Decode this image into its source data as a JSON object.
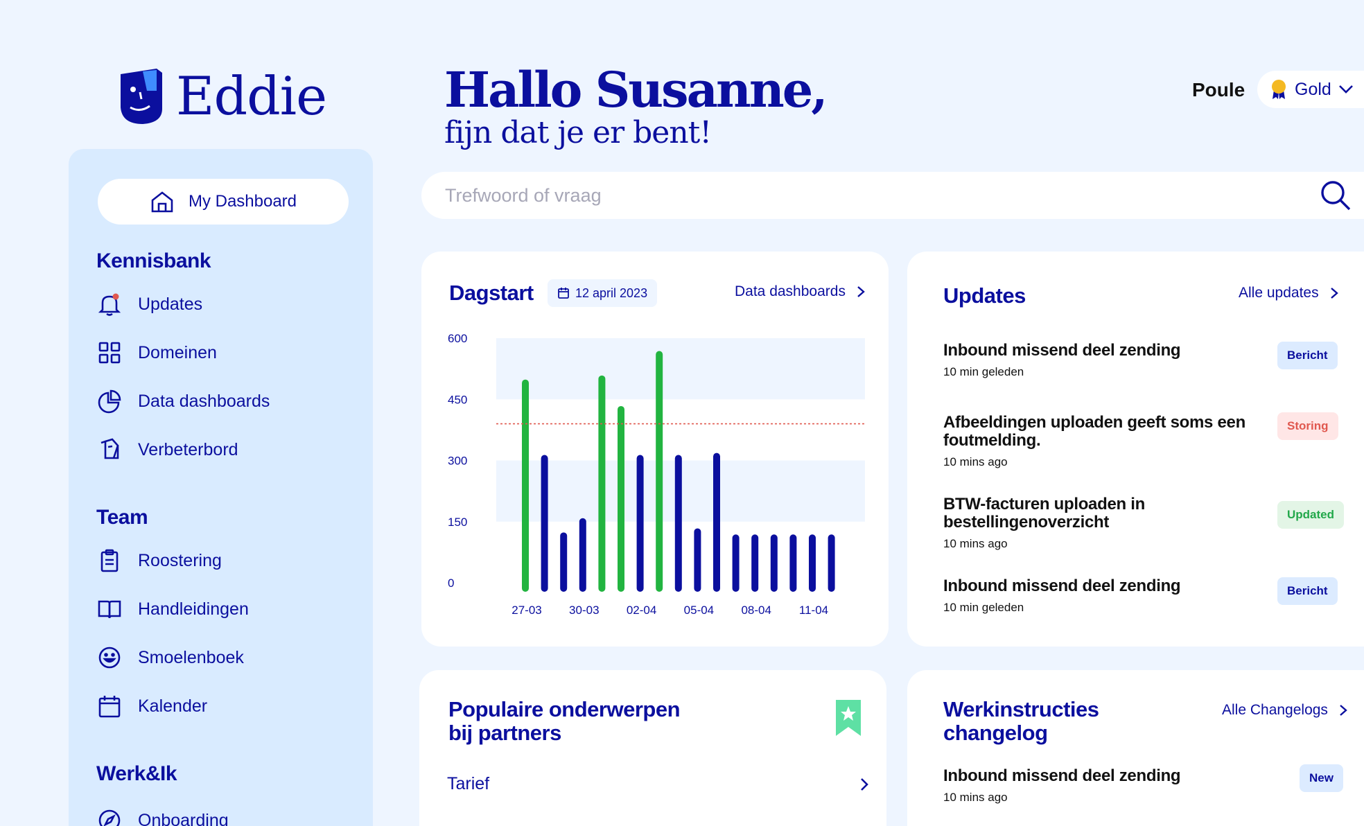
{
  "brand": {
    "name": "Eddie"
  },
  "sidebar": {
    "dashboard_label": "My Dashboard",
    "sections": [
      {
        "title": "Kennisbank",
        "items": [
          {
            "label": "Updates",
            "icon": "bell-icon"
          },
          {
            "label": "Domeinen",
            "icon": "grid-icon"
          },
          {
            "label": "Data dashboards",
            "icon": "pie-chart-icon"
          },
          {
            "label": "Verbeterbord",
            "icon": "clipboard-icon"
          }
        ]
      },
      {
        "title": "Team",
        "items": [
          {
            "label": "Roostering",
            "icon": "clipboard-list-icon"
          },
          {
            "label": "Handleidingen",
            "icon": "book-icon"
          },
          {
            "label": "Smoelenboek",
            "icon": "smiley-icon"
          },
          {
            "label": "Kalender",
            "icon": "calendar-icon"
          }
        ]
      },
      {
        "title": "Werk&Ik",
        "items": [
          {
            "label": "Onboarding",
            "icon": "compass-icon"
          }
        ]
      }
    ]
  },
  "header": {
    "greeting": "Hallo Susanne,",
    "subtitle": "fijn dat je er bent!",
    "poule_label": "Poule",
    "poule_value": "Gold"
  },
  "search": {
    "placeholder": "Trefwoord of vraag"
  },
  "dagstart": {
    "title": "Dagstart",
    "date": "12 april 2023",
    "link": "Data dashboards"
  },
  "chart_data": {
    "type": "bar",
    "y_ticks": [
      "600",
      "450",
      "300",
      "150",
      "0"
    ],
    "x_tick_labels": [
      "27-03",
      "30-03",
      "02-04",
      "05-04",
      "08-04",
      "11-04"
    ],
    "ylim": [
      0,
      600
    ],
    "threshold": 390,
    "colors": {
      "highlight": "#22b440",
      "normal": "#0b0f9e",
      "threshold": "#e0584f",
      "band": "#eef5ff"
    },
    "values": [
      490,
      305,
      115,
      150,
      500,
      425,
      305,
      560,
      305,
      125,
      310,
      110,
      110,
      110,
      110,
      110,
      110
    ],
    "highlight": [
      true,
      false,
      false,
      false,
      true,
      true,
      false,
      true,
      false,
      false,
      false,
      false,
      false,
      false,
      false,
      false,
      false
    ]
  },
  "updates": {
    "title": "Updates",
    "link": "Alle updates",
    "items": [
      {
        "title": "Inbound missend deel zending",
        "time": "10 min geleden",
        "badge": "Bericht",
        "kind": "bericht"
      },
      {
        "title": "Afbeeldingen uploaden geeft soms een foutmelding.",
        "time": "10 mins ago",
        "badge": "Storing",
        "kind": "storing"
      },
      {
        "title": "BTW-facturen uploaden in bestellingenoverzicht",
        "time": "10 mins ago",
        "badge": "Updated",
        "kind": "updated"
      },
      {
        "title": "Inbound missend deel zending",
        "time": "10 min geleden",
        "badge": "Bericht",
        "kind": "bericht"
      }
    ]
  },
  "populair": {
    "title_line1": "Populaire onderwerpen",
    "title_line2": "bij partners",
    "items": [
      {
        "label": "Tarief"
      }
    ]
  },
  "werkinstructies": {
    "title_line1": "Werkinstructies",
    "title_line2": "changelog",
    "link": "Alle Changelogs",
    "items": [
      {
        "title": "Inbound missend deel zending",
        "time": "10 mins ago",
        "badge": "New"
      }
    ]
  }
}
